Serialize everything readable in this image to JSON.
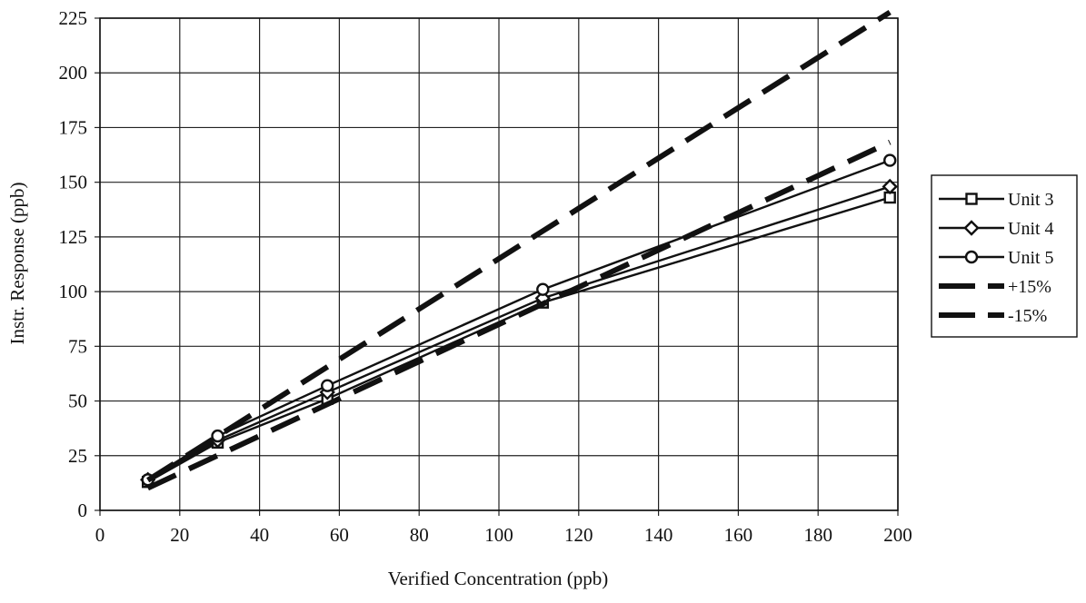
{
  "chart_data": {
    "type": "line",
    "title": "",
    "xlabel": "Verified Concentration (ppb)",
    "ylabel": "Instr. Response (ppb)",
    "xlim": [
      0,
      200
    ],
    "ylim": [
      0,
      225
    ],
    "xticks": [
      "0",
      "20",
      "40",
      "60",
      "80",
      "100",
      "120",
      "140",
      "160",
      "180",
      "200"
    ],
    "yticks": [
      "0",
      "25",
      "50",
      "75",
      "100",
      "125",
      "150",
      "175",
      "200",
      "225"
    ],
    "grid": true,
    "legend_position": "right",
    "series": [
      {
        "name": "Unit 3",
        "marker": "square",
        "style": "solid",
        "x": [
          12,
          29.5,
          57,
          111,
          198
        ],
        "y": [
          13,
          31,
          51,
          95,
          143
        ]
      },
      {
        "name": "Unit 4",
        "marker": "diamond",
        "style": "solid",
        "x": [
          12,
          29.5,
          57,
          111,
          198
        ],
        "y": [
          14,
          32,
          54,
          97,
          148
        ]
      },
      {
        "name": "Unit 5",
        "marker": "circle",
        "style": "solid",
        "x": [
          12,
          29.5,
          57,
          111,
          198
        ],
        "y": [
          14,
          34,
          57,
          101,
          160
        ]
      },
      {
        "name": "+15%",
        "marker": "none",
        "style": "dashed",
        "x": [
          12,
          29.5,
          57,
          111,
          198
        ],
        "y": [
          13.8,
          33.9,
          65.6,
          127.7,
          227.7
        ]
      },
      {
        "name": "-15%",
        "marker": "none",
        "style": "dashed",
        "x": [
          12,
          29.5,
          57,
          111,
          198
        ],
        "y": [
          10.2,
          25.1,
          48.5,
          94.4,
          168.3
        ]
      }
    ]
  }
}
